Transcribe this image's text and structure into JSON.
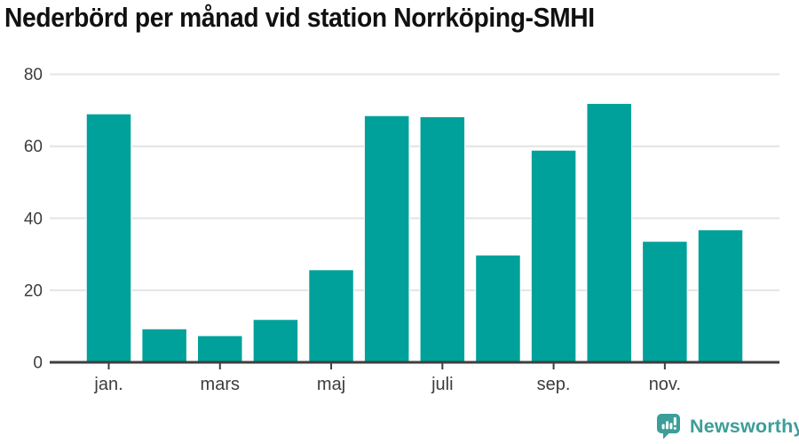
{
  "chart_data": {
    "type": "bar",
    "title": "Nederbörd per månad vid station Norrköping-SMHI",
    "categories": [
      "jan.",
      "",
      "mars",
      "",
      "maj",
      "",
      "juli",
      "",
      "sep.",
      "",
      "nov.",
      ""
    ],
    "values": [
      69,
      9.3,
      7.4,
      11.9,
      25.7,
      68.5,
      68.2,
      29.8,
      58.9,
      71.9,
      33.6,
      36.8
    ],
    "y_ticks": [
      0,
      20,
      40,
      60,
      80
    ],
    "y_tick_labels": [
      "0",
      "20",
      "40",
      "60",
      "80"
    ],
    "ylim": [
      0,
      80
    ],
    "xlabel": "",
    "ylabel": "",
    "grid": true,
    "legend": "none",
    "bar_color": "#00a19a",
    "grid_color": "#e4e4e4",
    "axis_color": "#3f3f3f",
    "label_color": "#3d3d3d",
    "title_color": "#111111",
    "background": "#ffffff"
  },
  "branding": {
    "label": "Newsworthy",
    "color": "#3c9e98",
    "icon": "newsworthy-speech-bubble-bar-chart-icon"
  }
}
